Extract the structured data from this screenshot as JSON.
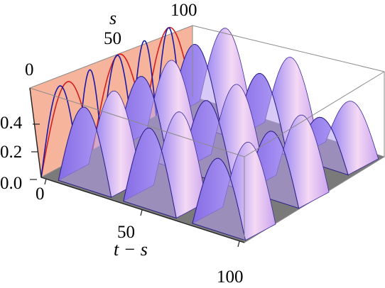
{
  "chart_data": {
    "type": "surface3d",
    "title": "",
    "axes": {
      "x": {
        "label": "t − s",
        "ticks": [
          "0",
          "50",
          "100"
        ],
        "range": [
          0,
          100
        ]
      },
      "y": {
        "label": "s",
        "ticks": [
          "0",
          "50",
          "100"
        ],
        "range": [
          0,
          100
        ]
      },
      "z": {
        "label": "",
        "ticks": [
          "0.0",
          "0.2",
          "0.4"
        ],
        "range": [
          0,
          0.55
        ]
      }
    },
    "floor_color": "#7a7a7a",
    "back_wall_color": "#f6b49c",
    "surface_colors": [
      "#5b3fe0",
      "#8f78f0",
      "#f6d8f2"
    ],
    "surface_rows": [
      {
        "s": 12,
        "peaks": [
          {
            "x": 20,
            "z": 0.5
          },
          {
            "x": 52,
            "z": 0.5
          },
          {
            "x": 86,
            "z": 0.45
          }
        ]
      },
      {
        "s": 50,
        "peaks": [
          {
            "x": 20,
            "z": 0.5
          },
          {
            "x": 52,
            "z": 0.48
          },
          {
            "x": 84,
            "z": 0.42
          }
        ]
      },
      {
        "s": 88,
        "peaks": [
          {
            "x": 18,
            "z": 0.5
          },
          {
            "x": 50,
            "z": 0.45
          },
          {
            "x": 80,
            "z": 0.3
          }
        ]
      }
    ],
    "wall_curves": [
      {
        "name": "",
        "color": "#d41e1e",
        "arches": [
          [
            0,
            34
          ],
          [
            34,
            68
          ],
          [
            68,
            100
          ]
        ],
        "peak": 0.5
      },
      {
        "name": "",
        "color": "#1a1aa6",
        "arches": [
          [
            0,
            24
          ],
          [
            24,
            40
          ],
          [
            40,
            60
          ],
          [
            60,
            76
          ],
          [
            76,
            92
          ]
        ],
        "peak": 0.5
      }
    ],
    "grid": false,
    "legend": "none"
  }
}
